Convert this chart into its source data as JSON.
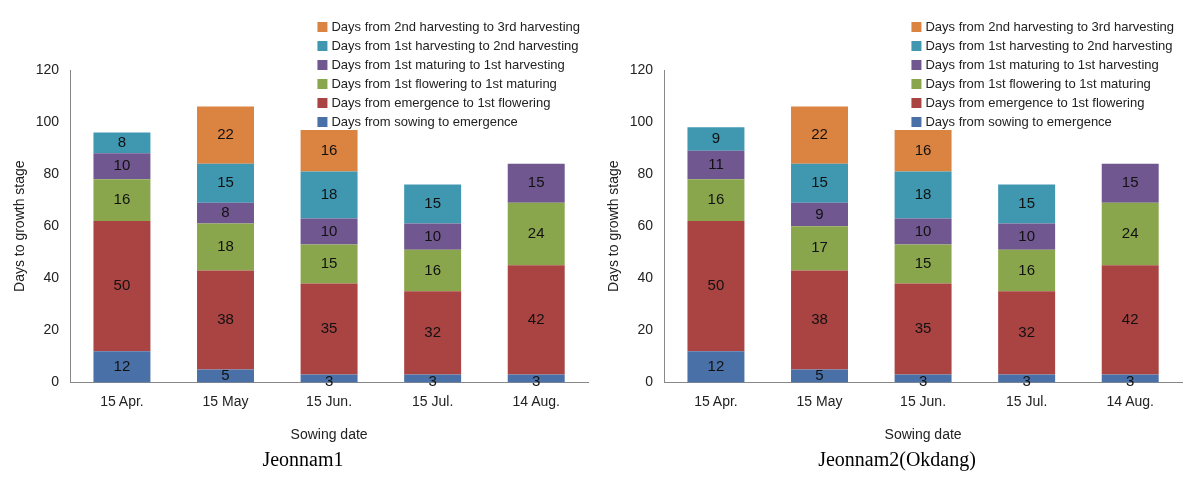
{
  "chart_data": [
    {
      "type": "bar",
      "title": "Jeonnam1",
      "xlabel": "Sowing date",
      "ylabel": "Days to growth stage",
      "categories": [
        "15 Apr.",
        "15 May",
        "15 Jun.",
        "15 Jul.",
        "14 Aug."
      ],
      "stacked": true,
      "ylim": [
        0,
        120
      ],
      "yticks": [
        0,
        20,
        40,
        60,
        80,
        100,
        120
      ],
      "grid": false,
      "legend": "top right",
      "data_labels": true,
      "series": [
        {
          "name": "Days from sowing to emergence",
          "color": "#4a70a8",
          "values": [
            12,
            5,
            3,
            3,
            3
          ]
        },
        {
          "name": "Days from emergence to 1st flowering",
          "color": "#a94442",
          "values": [
            50,
            38,
            35,
            32,
            42
          ]
        },
        {
          "name": "Days from 1st flowering to 1st maturing",
          "color": "#8aa64c",
          "values": [
            16,
            18,
            15,
            16,
            24
          ]
        },
        {
          "name": "Days from 1st maturing to 1st harvesting",
          "color": "#70578f",
          "values": [
            10,
            8,
            10,
            10,
            15
          ]
        },
        {
          "name": "Days from 1st harvesting to 2nd harvesting",
          "color": "#3f97b0",
          "values": [
            8,
            15,
            18,
            15,
            null
          ]
        },
        {
          "name": "Days from 2nd harvesting to 3rd harvesting",
          "color": "#db8340",
          "values": [
            null,
            22,
            16,
            null,
            null
          ]
        }
      ]
    },
    {
      "type": "bar",
      "title": "Jeonnam2(Okdang)",
      "xlabel": "Sowing date",
      "ylabel": "Days to growth stage",
      "categories": [
        "15 Apr.",
        "15 May",
        "15 Jun.",
        "15 Jul.",
        "14 Aug."
      ],
      "stacked": true,
      "ylim": [
        0,
        120
      ],
      "yticks": [
        0,
        20,
        40,
        60,
        80,
        100,
        120
      ],
      "grid": false,
      "legend": "top right",
      "data_labels": true,
      "series": [
        {
          "name": "Days from sowing to emergence",
          "color": "#4a70a8",
          "values": [
            12,
            5,
            3,
            3,
            3
          ]
        },
        {
          "name": "Days from emergence to 1st flowering",
          "color": "#a94442",
          "values": [
            50,
            38,
            35,
            32,
            42
          ]
        },
        {
          "name": "Days from 1st flowering to 1st maturing",
          "color": "#8aa64c",
          "values": [
            16,
            17,
            15,
            16,
            24
          ]
        },
        {
          "name": "Days from 1st maturing to 1st harvesting",
          "color": "#70578f",
          "values": [
            11,
            9,
            10,
            10,
            15
          ]
        },
        {
          "name": "Days from 1st harvesting to 2nd harvesting",
          "color": "#3f97b0",
          "values": [
            9,
            15,
            18,
            15,
            null
          ]
        },
        {
          "name": "Days from 2nd harvesting to 3rd harvesting",
          "color": "#db8340",
          "values": [
            null,
            22,
            16,
            null,
            null
          ]
        }
      ]
    }
  ]
}
